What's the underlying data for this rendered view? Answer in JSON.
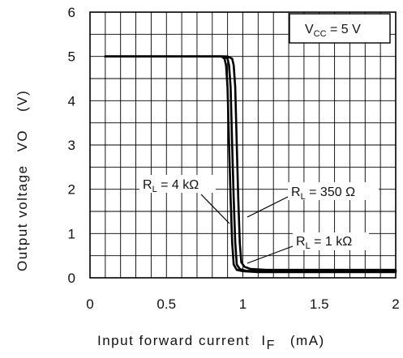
{
  "chart_data": {
    "type": "line",
    "xlabel": "Input forward current",
    "xlabel_symbol": "I",
    "xlabel_symbol_sub": "F",
    "xlabel_unit": "(mA)",
    "ylabel": "Output voltage",
    "ylabel_symbol": "VO",
    "ylabel_unit": "(V)",
    "xlim": [
      0,
      2
    ],
    "ylim": [
      0,
      6
    ],
    "xticks": [
      "0",
      "0.5",
      "1",
      "1.5",
      "2"
    ],
    "yticks": [
      "0",
      "1",
      "2",
      "3",
      "4",
      "5",
      "6"
    ],
    "grid": true,
    "condition": {
      "main": "V",
      "sub": "CC",
      "rest": " = 5 V"
    },
    "series": [
      {
        "name": "RL = 4 kΩ",
        "x": [
          0.1,
          0.86,
          0.88,
          0.89,
          0.9,
          0.91,
          0.92,
          0.93,
          0.94,
          0.96,
          1.0,
          1.1,
          2.0
        ],
        "y": [
          5.0,
          5.0,
          4.95,
          4.8,
          4.3,
          3.0,
          1.8,
          0.8,
          0.3,
          0.18,
          0.15,
          0.13,
          0.13
        ]
      },
      {
        "name": "RL = 1 kΩ",
        "x": [
          0.1,
          0.88,
          0.9,
          0.91,
          0.92,
          0.93,
          0.94,
          0.95,
          0.96,
          0.98,
          1.02,
          1.1,
          2.0
        ],
        "y": [
          5.0,
          5.0,
          4.95,
          4.8,
          4.3,
          3.0,
          1.8,
          0.8,
          0.3,
          0.2,
          0.16,
          0.15,
          0.15
        ]
      },
      {
        "name": "RL = 350 Ω",
        "x": [
          0.1,
          0.9,
          0.93,
          0.94,
          0.95,
          0.96,
          0.97,
          0.98,
          0.99,
          1.01,
          1.05,
          1.15,
          2.0
        ],
        "y": [
          5.0,
          5.0,
          4.95,
          4.8,
          4.3,
          3.0,
          1.8,
          0.8,
          0.35,
          0.25,
          0.2,
          0.18,
          0.18
        ]
      }
    ],
    "annotations": [
      {
        "base": "R",
        "sub": "L",
        "rest": " = 4 kΩ"
      },
      {
        "base": "R",
        "sub": "L",
        "rest": " = 350 Ω"
      },
      {
        "base": "R",
        "sub": "L",
        "rest": " = 1 kΩ"
      }
    ]
  }
}
